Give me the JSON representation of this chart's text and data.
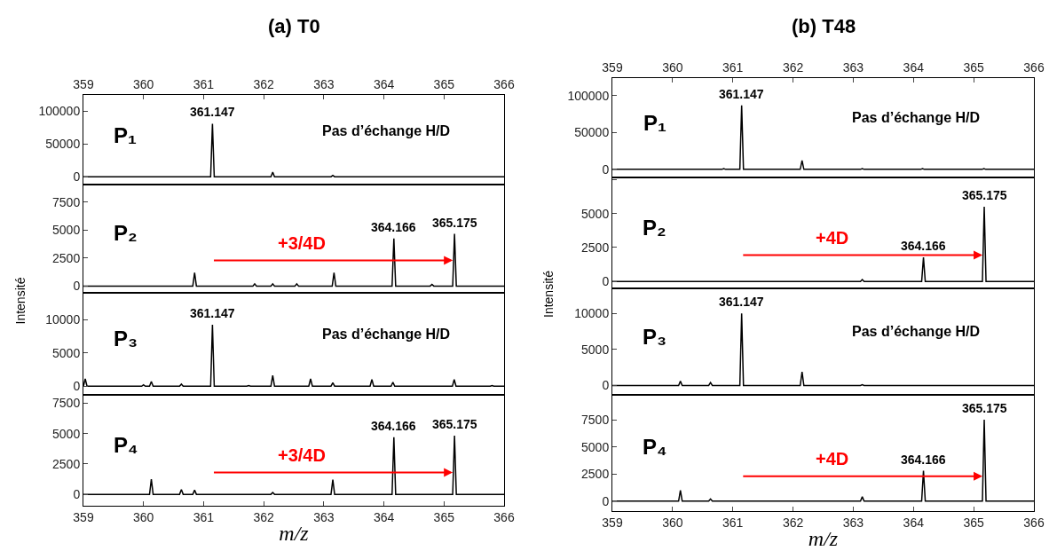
{
  "chart_data": [
    {
      "type": "line",
      "title": "(a) T0",
      "xlim": [
        359,
        366
      ],
      "xticks": [
        359,
        360,
        361,
        362,
        363,
        364,
        365,
        366
      ],
      "ylim": [
        -12000,
        125000
      ],
      "yticks": [
        0,
        50000,
        100000
      ],
      "series": [
        {
          "color": "#000000",
          "x": [
            359,
            361.117,
            361.147,
            361.177,
            362.12,
            362.15,
            362.18,
            363.12,
            363.15,
            363.18,
            366
          ],
          "values": [
            0,
            0,
            81000,
            0,
            0,
            7000,
            0,
            0,
            2000,
            0,
            0
          ]
        }
      ],
      "annotations": [
        "P₁",
        "Pas d’échange H/D",
        {
          "text": "361.147",
          "x": 361.147,
          "y": 81000
        }
      ]
    },
    {
      "type": "line",
      "xlim": [
        359,
        366
      ],
      "tick_labels": "y",
      "ylim": [
        -600,
        9050
      ],
      "yticks": [
        0,
        2500,
        5000,
        7500
      ],
      "ylabel": "Intensité",
      "series": [
        {
          "color": "#000000",
          "x": [
            359,
            360.82,
            360.85,
            360.88,
            361.82,
            361.85,
            361.88,
            362.12,
            362.15,
            362.18,
            362.52,
            362.55,
            362.58,
            363.14,
            363.17,
            363.2,
            364.136,
            364.166,
            364.196,
            364.77,
            364.8,
            364.83,
            365.145,
            365.175,
            365.205,
            366
          ],
          "values": [
            0,
            0,
            1200,
            0,
            0,
            200,
            0,
            0,
            200,
            0,
            0,
            200,
            0,
            0,
            1200,
            0,
            0,
            4250,
            0,
            0,
            150,
            0,
            0,
            4650,
            0,
            0
          ]
        }
      ],
      "annotations": [
        "P₂",
        "+3/4D",
        {
          "text": "364.166",
          "x": 364.166,
          "y": 4250
        },
        {
          "text": "365.175",
          "x": 365.175,
          "y": 4650
        }
      ]
    },
    {
      "type": "line",
      "xlim": [
        359,
        366
      ],
      "tick_labels": "y",
      "ylim": [
        -1300,
        14000
      ],
      "yticks": [
        0,
        5000,
        10000
      ],
      "series": [
        {
          "color": "#000000",
          "x": [
            359,
            359.03,
            359.06,
            359.97,
            360,
            360.03,
            360.1,
            360.13,
            360.16,
            360.6,
            360.63,
            360.66,
            361.117,
            361.147,
            361.177,
            361.72,
            361.75,
            361.78,
            362.12,
            362.15,
            362.18,
            362.75,
            362.78,
            362.81,
            363.12,
            363.15,
            363.18,
            363.77,
            363.8,
            363.83,
            364.12,
            364.15,
            364.18,
            365.14,
            365.17,
            365.2,
            365.77,
            365.8,
            365.83,
            366
          ],
          "values": [
            0,
            1100,
            0,
            0,
            200,
            0,
            0,
            700,
            0,
            0,
            300,
            0,
            0,
            9200,
            0,
            0,
            100,
            0,
            0,
            1600,
            0,
            0,
            1100,
            0,
            0,
            500,
            0,
            0,
            1000,
            0,
            0,
            600,
            0,
            0,
            1000,
            0,
            0,
            100,
            0,
            0
          ]
        }
      ],
      "annotations": [
        "P₃",
        "Pas d’échange H/D",
        {
          "text": "361.147",
          "x": 361.147,
          "y": 9200
        }
      ]
    },
    {
      "type": "line",
      "xlim": [
        359,
        366
      ],
      "xticks": [
        359,
        360,
        361,
        362,
        363,
        364,
        365,
        366
      ],
      "xlabel": "m/z",
      "ylim": [
        -940,
        8190
      ],
      "yticks": [
        0,
        2500,
        5000,
        7500
      ],
      "series": [
        {
          "color": "#000000",
          "x": [
            359,
            360.1,
            360.13,
            360.16,
            360.6,
            360.63,
            360.66,
            360.82,
            360.85,
            360.88,
            362.12,
            362.15,
            362.18,
            363.12,
            363.15,
            363.18,
            364.136,
            364.166,
            364.196,
            365.145,
            365.175,
            365.205,
            366
          ],
          "values": [
            0,
            0,
            1240,
            0,
            0,
            400,
            0,
            0,
            350,
            0,
            0,
            150,
            0,
            0,
            1200,
            0,
            0,
            4710,
            0,
            0,
            4830,
            0,
            0
          ]
        }
      ],
      "annotations": [
        "P₄",
        "+3/4D",
        {
          "text": "364.166",
          "x": 364.166,
          "y": 4710
        },
        {
          "text": "365.175",
          "x": 365.175,
          "y": 4830
        }
      ]
    },
    {
      "type": "line",
      "title": "(b) T48",
      "xlim": [
        359,
        366
      ],
      "xticks": [
        359,
        360,
        361,
        362,
        363,
        364,
        365,
        366
      ],
      "ylim": [
        -11000,
        124000
      ],
      "yticks": [
        0,
        50000,
        100000
      ],
      "series": [
        {
          "color": "#000000",
          "x": [
            359,
            360.82,
            360.85,
            360.88,
            361.117,
            361.147,
            361.177,
            362.12,
            362.15,
            362.18,
            363.12,
            363.15,
            363.18,
            364.12,
            364.15,
            364.18,
            365.14,
            365.17,
            365.2,
            366
          ],
          "values": [
            0,
            0,
            1000,
            0,
            0,
            87000,
            0,
            0,
            12000,
            0,
            0,
            1000,
            0,
            0,
            1000,
            0,
            0,
            1000,
            0,
            0
          ]
        }
      ],
      "annotations": [
        "P₁",
        "Pas d’échange H/D",
        {
          "text": "361.147",
          "x": 361.147,
          "y": 87000
        }
      ]
    },
    {
      "type": "line",
      "xlim": [
        359,
        366
      ],
      "tick_labels": "y",
      "ylim": [
        -500,
        7650
      ],
      "yticks": [
        0,
        2500,
        5000,
        {
          "value": 7500,
          "label": null
        }
      ],
      "ylabel": "Intensité",
      "series": [
        {
          "color": "#000000",
          "x": [
            359,
            363.12,
            363.15,
            363.18,
            364.136,
            364.166,
            364.196,
            365.145,
            365.175,
            365.205,
            366
          ],
          "values": [
            0,
            0,
            150,
            0,
            0,
            1780,
            0,
            0,
            5500,
            0,
            0
          ]
        }
      ],
      "annotations": [
        "P₂",
        "+4D",
        {
          "text": "364.166",
          "x": 364.166,
          "y": 1780
        },
        {
          "text": "365.175",
          "x": 365.175,
          "y": 5500
        }
      ]
    },
    {
      "type": "line",
      "xlim": [
        359,
        366
      ],
      "tick_labels": "y",
      "ylim": [
        -1300,
        13500
      ],
      "yticks": [
        0,
        5000,
        10000
      ],
      "series": [
        {
          "color": "#000000",
          "x": [
            359,
            360.1,
            360.13,
            360.16,
            360.6,
            360.63,
            360.66,
            361.117,
            361.147,
            361.177,
            362.12,
            362.15,
            362.18,
            363.12,
            363.15,
            363.18,
            366
          ],
          "values": [
            0,
            0,
            600,
            0,
            0,
            400,
            0,
            0,
            10000,
            0,
            0,
            1900,
            0,
            0,
            100,
            0,
            0
          ]
        }
      ],
      "annotations": [
        "P₃",
        "Pas d’échange H/D",
        {
          "text": "361.147",
          "x": 361.147,
          "y": 10000
        }
      ]
    },
    {
      "type": "line",
      "xlim": [
        359,
        366
      ],
      "xticks": [
        359,
        360,
        361,
        362,
        363,
        364,
        365,
        366
      ],
      "xlabel": "m/z",
      "ylim": [
        -920,
        9800
      ],
      "yticks": [
        0,
        2500,
        5000,
        7500
      ],
      "series": [
        {
          "color": "#000000",
          "x": [
            359,
            360.1,
            360.13,
            360.16,
            360.6,
            360.63,
            360.66,
            363.12,
            363.15,
            363.18,
            364.136,
            364.166,
            364.196,
            365.145,
            365.175,
            365.205,
            366
          ],
          "values": [
            0,
            0,
            1000,
            0,
            0,
            200,
            0,
            0,
            400,
            0,
            0,
            2800,
            0,
            0,
            7500,
            0,
            0
          ]
        }
      ],
      "annotations": [
        "P₄",
        "+4D",
        {
          "text": "364.166",
          "x": 364.166,
          "y": 2800
        },
        {
          "text": "365.175",
          "x": 365.175,
          "y": 7500
        }
      ]
    }
  ]
}
